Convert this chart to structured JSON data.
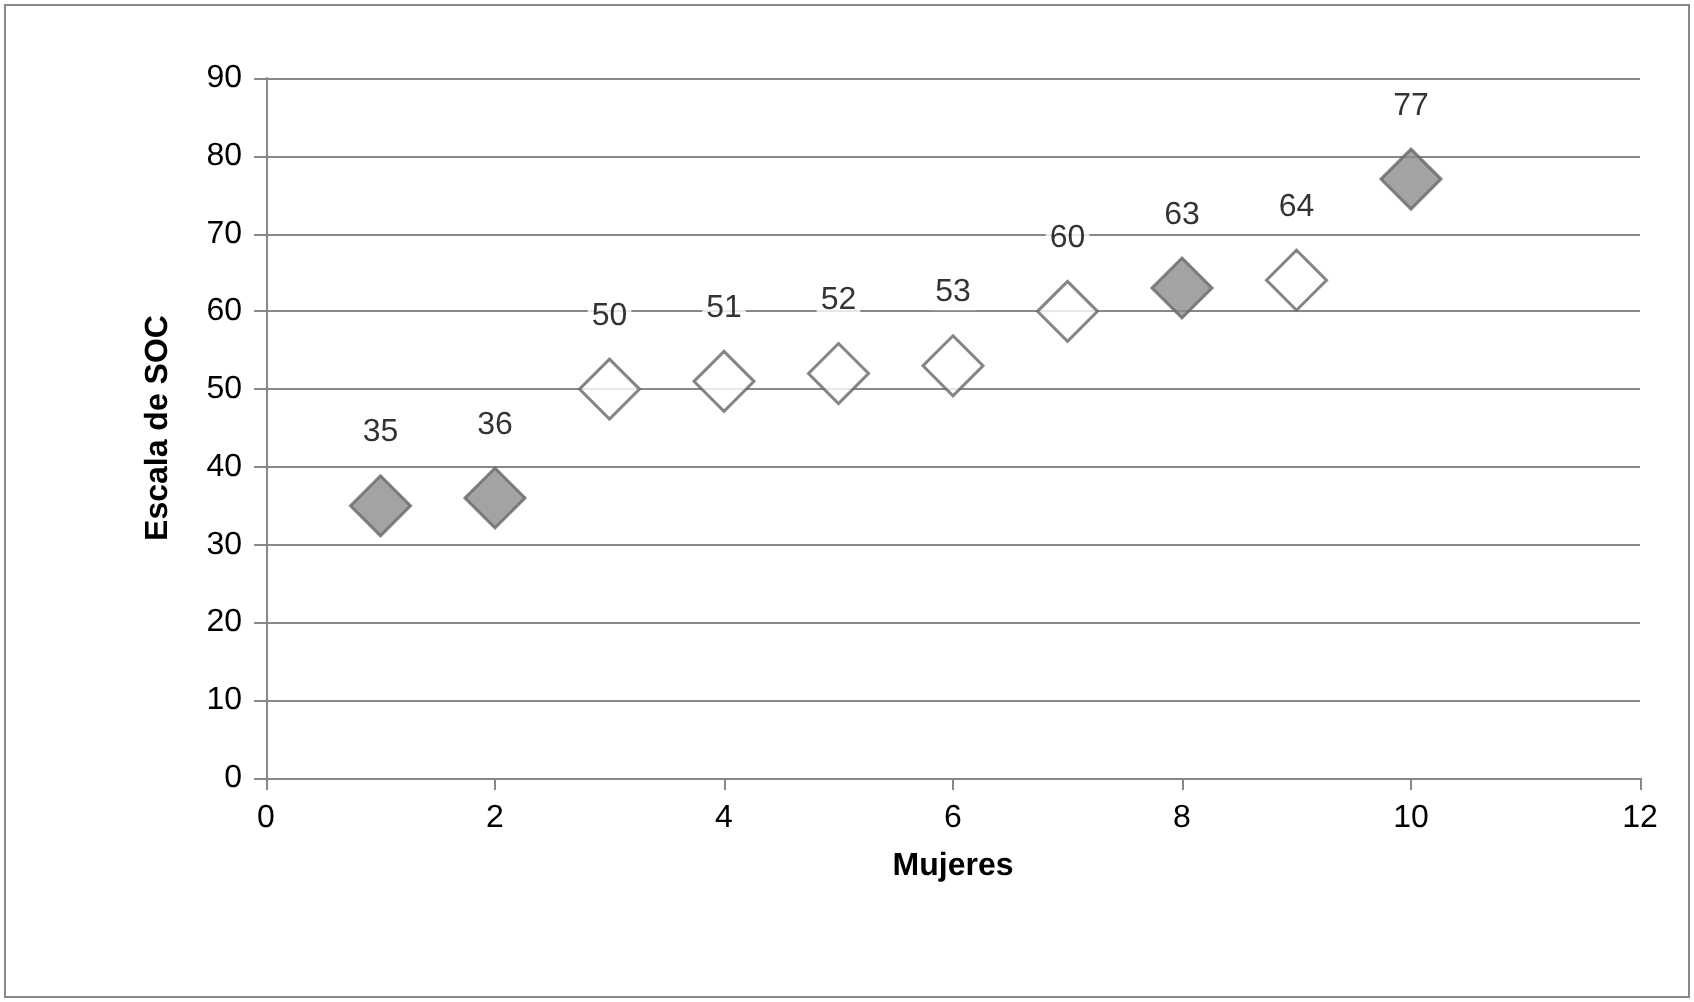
{
  "chart_data": {
    "type": "scatter",
    "xlabel": "Mujeres",
    "ylabel": "Escala de SOC",
    "x": [
      1,
      2,
      3,
      4,
      5,
      6,
      7,
      8,
      9,
      10
    ],
    "values": [
      35,
      36,
      50,
      51,
      52,
      53,
      60,
      63,
      64,
      77
    ],
    "colors": [
      "#8c8c8c",
      "#8c8c8c",
      "#ffffff",
      "#ffffff",
      "#ffffff",
      "#ffffff",
      "#ffffff",
      "#8c8c8c",
      "#ffffff",
      "#8c8c8c"
    ],
    "xlim": [
      0,
      12
    ],
    "xticks": [
      0,
      2,
      4,
      6,
      8,
      10,
      12
    ],
    "ylim": [
      0,
      90
    ],
    "yticks": [
      0,
      10,
      20,
      30,
      40,
      50,
      60,
      70,
      80,
      90
    ],
    "grid": "y",
    "marker": "diamond",
    "data_labels": true
  }
}
